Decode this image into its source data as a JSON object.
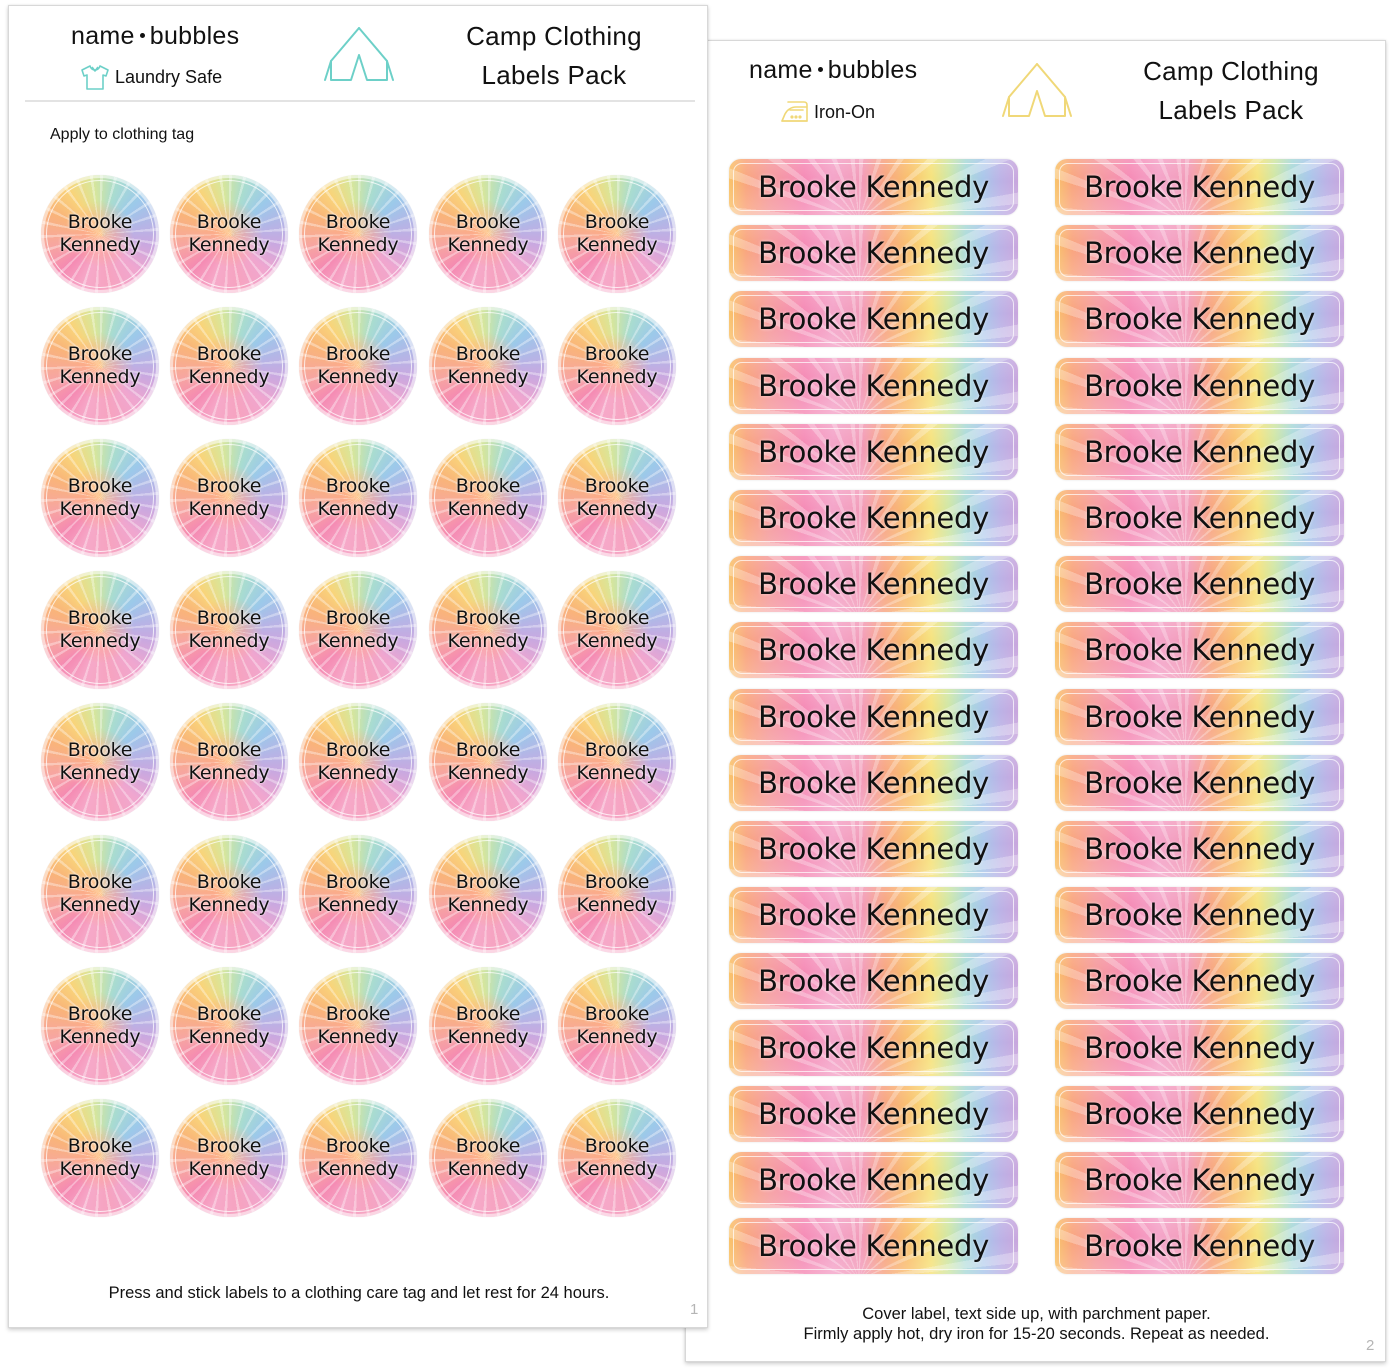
{
  "sheets": [
    {
      "page_number": "1",
      "brand": {
        "left": "name",
        "right": "bubbles"
      },
      "feature": {
        "icon": "t-shirt-icon",
        "label": "Laundry Safe",
        "color": "#6dd0c8"
      },
      "tent_icon": {
        "icon": "tent-icon",
        "color": "#6dd0c8"
      },
      "title_line1": "Camp Clothing",
      "title_line2": "Labels Pack",
      "instruction_top": "Apply to clothing tag",
      "label_shape": "circle",
      "label_grid": {
        "columns": 5,
        "rows": 8
      },
      "label_text": {
        "line1": "Brooke",
        "line2": "Kennedy"
      },
      "footer": "Press and stick labels to a clothing care tag and let rest for 24 hours."
    },
    {
      "page_number": "2",
      "brand": {
        "left": "name",
        "right": "bubbles"
      },
      "feature": {
        "icon": "iron-icon",
        "label": "Iron-On",
        "color": "#f0d878"
      },
      "tent_icon": {
        "icon": "tent-icon",
        "color": "#f0d878"
      },
      "title_line1": "Camp Clothing",
      "title_line2": "Labels Pack",
      "label_shape": "rounded-rectangle",
      "label_grid": {
        "columns": 2,
        "rows": 17
      },
      "label_text": "Brooke Kennedy",
      "footer_line1": "Cover label, text side up, with parchment paper.",
      "footer_line2": "Firmly apply hot, dry iron for 15-20 seconds. Repeat as needed."
    }
  ]
}
